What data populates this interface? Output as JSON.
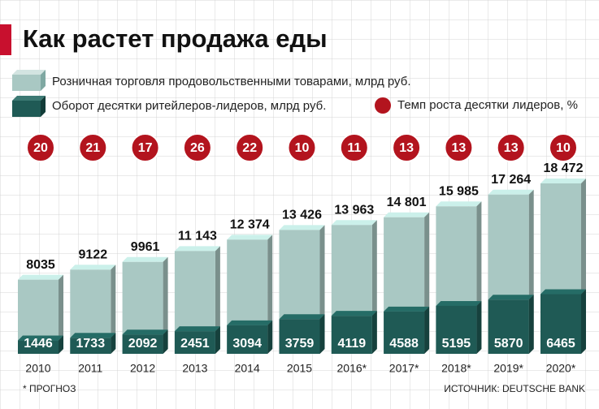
{
  "chart_data": {
    "type": "bar",
    "title": "Как растет продажа еды",
    "categories": [
      "2010",
      "2011",
      "2012",
      "2013",
      "2014",
      "2015",
      "2016*",
      "2017*",
      "2018*",
      "2019*",
      "2020*"
    ],
    "series": [
      {
        "name": "Розничная торговля продовольственными товарами, млрд руб.",
        "color": "#a9c8c3",
        "values": [
          8035,
          9122,
          9961,
          11143,
          12374,
          13426,
          13963,
          14801,
          15985,
          17264,
          18472
        ],
        "value_labels": [
          "8035",
          "9122",
          "9961",
          "11 143",
          "12 374",
          "13 426",
          "13 963",
          "14 801",
          "15 985",
          "17 264",
          "18 472"
        ]
      },
      {
        "name": "Оборот десятки ритейлеров-лидеров, млрд руб.",
        "color": "#1f5a55",
        "values": [
          1446,
          1733,
          2092,
          2451,
          3094,
          3759,
          4119,
          4588,
          5195,
          5870,
          6465
        ]
      },
      {
        "name": "Темп роста десятки лидеров, %",
        "color": "#b3141e",
        "values": [
          20,
          21,
          17,
          26,
          22,
          10,
          11,
          13,
          13,
          13,
          10
        ]
      }
    ],
    "note": "* ПРОГНОЗ",
    "source": "ИСТОЧНИК: DEUTSCHE BANK"
  }
}
